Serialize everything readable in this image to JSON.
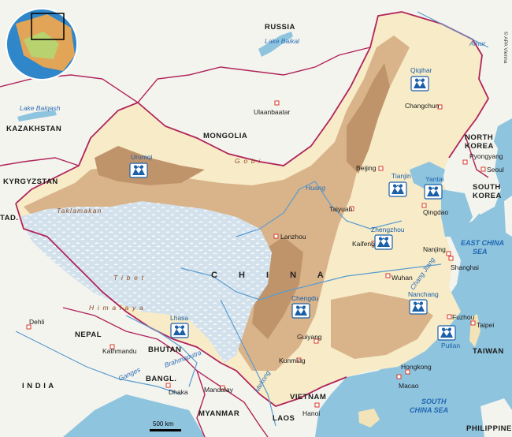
{
  "credit": "© APA Vienna",
  "scale_label": "500 km",
  "countries": [
    {
      "key": "russia",
      "label": "RUSSIA"
    },
    {
      "key": "kazakhstan",
      "label": "KAZAKHSTAN"
    },
    {
      "key": "mongolia",
      "label": "MONGOLIA"
    },
    {
      "key": "kyrgyzstan",
      "label": "KYRGYZSTAN"
    },
    {
      "key": "tad",
      "label": "TAD."
    },
    {
      "key": "nepal",
      "label": "NEPAL"
    },
    {
      "key": "bhutan",
      "label": "BHUTAN"
    },
    {
      "key": "bangl",
      "label": "BANGL."
    },
    {
      "key": "india",
      "label": "I N D I A"
    },
    {
      "key": "myanmar",
      "label": "MYANMAR"
    },
    {
      "key": "laos",
      "label": "LAOS"
    },
    {
      "key": "vietnam",
      "label": "VIETNAM"
    },
    {
      "key": "philippines",
      "label": "PHILIPPINES"
    },
    {
      "key": "taiwan",
      "label": "TAIWAN"
    },
    {
      "key": "north-korea-1",
      "label": "NORTH"
    },
    {
      "key": "north-korea-2",
      "label": "KOREA"
    },
    {
      "key": "south-korea-1",
      "label": "SOUTH"
    },
    {
      "key": "south-korea-2",
      "label": "KOREA"
    },
    {
      "key": "china",
      "label": "C H I N A"
    }
  ],
  "cities": [
    {
      "key": "ulaanbaatar",
      "label": "Ulaanbaatar"
    },
    {
      "key": "beijing",
      "label": "Beijing"
    },
    {
      "key": "changchun",
      "label": "Changchun"
    },
    {
      "key": "pyongyang",
      "label": "Pyongyang"
    },
    {
      "key": "seoul",
      "label": "Seoul"
    },
    {
      "key": "taiyuan",
      "label": "Taiyuan"
    },
    {
      "key": "qingdao",
      "label": "Qingdao"
    },
    {
      "key": "lanzhou",
      "label": "Lanzhou"
    },
    {
      "key": "kaifeng",
      "label": "Kaifeng"
    },
    {
      "key": "nanjing",
      "label": "Nanjing"
    },
    {
      "key": "shanghai",
      "label": "Shanghai"
    },
    {
      "key": "wuhan",
      "label": "Wuhan"
    },
    {
      "key": "fuzhou",
      "label": "Fuzhou"
    },
    {
      "key": "taipei",
      "label": "Taipei"
    },
    {
      "key": "guiyang",
      "label": "Guiyang"
    },
    {
      "key": "kunming",
      "label": "Kunming"
    },
    {
      "key": "hongkong",
      "label": "Hongkong"
    },
    {
      "key": "macao",
      "label": "Macao"
    },
    {
      "key": "dehli",
      "label": "Dehli"
    },
    {
      "key": "kathmandu",
      "label": "Kathmandu"
    },
    {
      "key": "dhaka",
      "label": "Dhaka"
    },
    {
      "key": "mandalay",
      "label": "Mandalay"
    },
    {
      "key": "hanoi",
      "label": "Hanoi"
    }
  ],
  "sos_villages": [
    {
      "key": "urumqi",
      "label": "Urumqi"
    },
    {
      "key": "qiqihar",
      "label": "Qiqihar"
    },
    {
      "key": "tianjin",
      "label": "Tianjin"
    },
    {
      "key": "yantai",
      "label": "Yantai"
    },
    {
      "key": "zhengzhou",
      "label": "Zhengzhou"
    },
    {
      "key": "chengdu",
      "label": "Chengdu"
    },
    {
      "key": "lhasa",
      "label": "Lhasa"
    },
    {
      "key": "nanchang",
      "label": "Nanchang"
    },
    {
      "key": "putian",
      "label": "Putian"
    }
  ],
  "water_labels": [
    {
      "key": "lake-baikal",
      "label": "Lake Baikal"
    },
    {
      "key": "lake-balqash",
      "label": "Lake Balqash"
    },
    {
      "key": "amur",
      "label": "Amur"
    },
    {
      "key": "huang",
      "label": "Huang"
    },
    {
      "key": "chang-jiang",
      "label": "Chang Jiang"
    },
    {
      "key": "mekong",
      "label": "Mekong"
    },
    {
      "key": "brahmaputra",
      "label": "Brahmaputra"
    },
    {
      "key": "ganges",
      "label": "Ganges"
    }
  ],
  "seas": [
    {
      "key": "east-china-sea-1",
      "label": "EAST CHINA"
    },
    {
      "key": "east-china-sea-2",
      "label": "SEA"
    },
    {
      "key": "south-china-sea-1",
      "label": "SOUTH"
    },
    {
      "key": "south-china-sea-2",
      "label": "CHINA SEA"
    }
  ],
  "terrain_labels": [
    {
      "key": "gobi",
      "label": "G o b i"
    },
    {
      "key": "taklamakan",
      "label": "Taklamakan"
    },
    {
      "key": "tibet",
      "label": "T i b e t"
    },
    {
      "key": "himalaya",
      "label": "H i m a l a y a"
    }
  ],
  "colors": {
    "sea": "#8fc4df",
    "land_outside": "#f4f4ef",
    "lowland": "#f7ebc8",
    "hills": "#d9b48a",
    "mountains": "#c0946b",
    "plateau": "#d7e4ee",
    "border": "#b0245a",
    "river": "#5a9ccf",
    "sos_icon": "#1a5fa8",
    "city_dot": "#d83a2a"
  }
}
